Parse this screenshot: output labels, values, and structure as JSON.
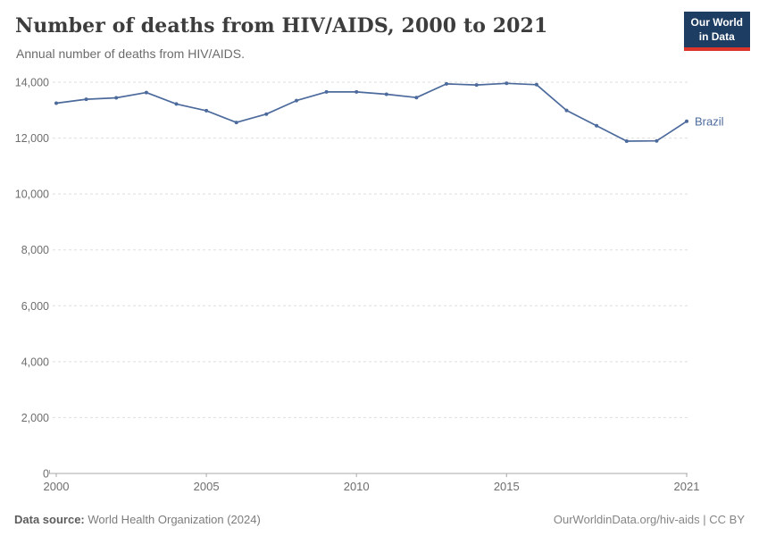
{
  "header": {
    "title": "Number of deaths from HIV/AIDS, 2000 to 2021",
    "subtitle": "Annual number of deaths from HIV/AIDS.",
    "logo": {
      "line1": "Our World",
      "line2": "in Data",
      "bg_color": "#1d3d63",
      "accent_color": "#dc352c"
    }
  },
  "chart_data": {
    "type": "line",
    "title": "Number of deaths from HIV/AIDS, 2000 to 2021",
    "xlabel": "",
    "ylabel": "",
    "x": [
      2000,
      2001,
      2002,
      2003,
      2004,
      2005,
      2006,
      2007,
      2008,
      2009,
      2010,
      2011,
      2012,
      2013,
      2014,
      2015,
      2016,
      2017,
      2018,
      2019,
      2020,
      2021
    ],
    "series": [
      {
        "name": "Brazil",
        "color": "#4c6a9c",
        "values": [
          13250,
          13390,
          13440,
          13630,
          13220,
          12980,
          12560,
          12860,
          13340,
          13650,
          13650,
          13570,
          13450,
          13940,
          13900,
          13960,
          13910,
          12990,
          12440,
          11890,
          11900,
          12600
        ]
      }
    ],
    "ylim": [
      0,
      14000
    ],
    "yticks": [
      0,
      2000,
      4000,
      6000,
      8000,
      10000,
      12000,
      14000
    ],
    "xticks": [
      2000,
      2005,
      2010,
      2015,
      2021
    ],
    "grid": "horizontal-dashed",
    "legend_position": "end-of-line-label",
    "colors": {
      "gridline": "#dedede",
      "axis": "#a8a8a8",
      "tick_label": "#6e6e6e"
    }
  },
  "footer": {
    "source_label": "Data source:",
    "source_value": " World Health Organization (2024)",
    "link": "OurWorldinData.org/hiv-aids | CC BY"
  }
}
